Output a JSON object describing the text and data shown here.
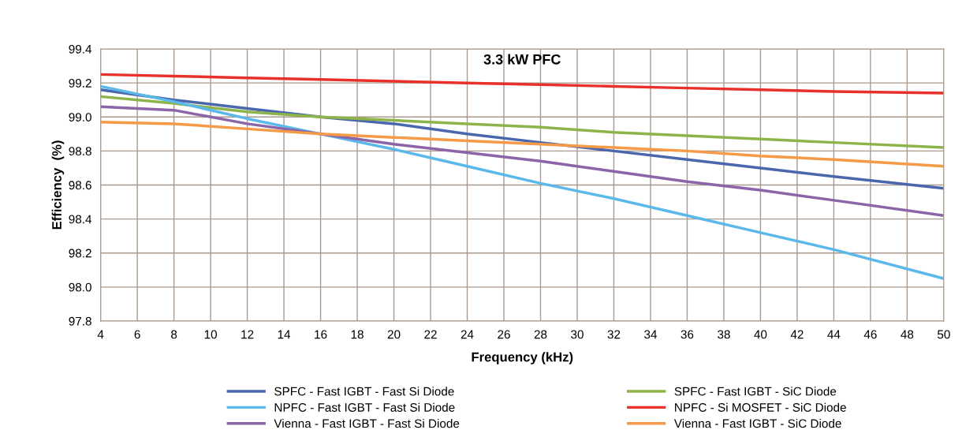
{
  "chart_data": {
    "type": "line",
    "title": "3.3 kW PFC",
    "xlabel": "Frequency (kHz)",
    "ylabel": "Efficiency  (%)",
    "x": [
      4,
      8,
      12,
      16,
      20,
      24,
      28,
      32,
      36,
      40,
      44,
      50
    ],
    "series": [
      {
        "name": "SPFC - Fast IGBT - Fast Si Diode",
        "color": "#4a66ac",
        "values": [
          99.16,
          99.1,
          99.05,
          99.0,
          98.96,
          98.9,
          98.85,
          98.8,
          98.75,
          98.7,
          98.65,
          98.58
        ]
      },
      {
        "name": "SPFC - Fast IGBT - SiC Diode",
        "color": "#8db44b",
        "values": [
          99.12,
          99.08,
          99.03,
          99.0,
          98.98,
          98.96,
          98.94,
          98.91,
          98.89,
          98.87,
          98.85,
          98.82
        ]
      },
      {
        "name": "NPFC - Fast IGBT - Fast Si Diode",
        "color": "#5bb8ea",
        "values": [
          99.18,
          99.09,
          98.99,
          98.9,
          98.81,
          98.71,
          98.61,
          98.52,
          98.42,
          98.32,
          98.22,
          98.05
        ]
      },
      {
        "name": "NPFC - Si MOSFET - SiC Diode",
        "color": "#e8312a",
        "values": [
          99.25,
          99.24,
          99.23,
          99.22,
          99.21,
          99.2,
          99.19,
          99.18,
          99.17,
          99.16,
          99.15,
          99.14
        ]
      },
      {
        "name": "Vienna - Fast IGBT - Fast Si Diode",
        "color": "#8c64a8",
        "values": [
          99.06,
          99.04,
          98.96,
          98.9,
          98.84,
          98.79,
          98.74,
          98.68,
          98.62,
          98.57,
          98.51,
          98.42
        ]
      },
      {
        "name": "Vienna - Fast IGBT - SiC Diode",
        "color": "#f59a46",
        "values": [
          98.97,
          98.96,
          98.93,
          98.9,
          98.88,
          98.86,
          98.84,
          98.82,
          98.8,
          98.77,
          98.75,
          98.71
        ]
      }
    ],
    "xlim": [
      4,
      50
    ],
    "xticks": [
      4,
      6,
      8,
      10,
      12,
      14,
      16,
      18,
      20,
      22,
      24,
      26,
      28,
      30,
      32,
      34,
      36,
      38,
      40,
      42,
      44,
      46,
      48,
      50
    ],
    "ylim": [
      97.8,
      99.4
    ],
    "yticks": [
      {
        "value": 97.8,
        "label": "97.8"
      },
      {
        "value": 98.0,
        "label": "98.0"
      },
      {
        "value": 98.2,
        "label": "98.2"
      },
      {
        "value": 98.4,
        "label": "98.4"
      },
      {
        "value": 98.6,
        "label": "98.6"
      },
      {
        "value": 98.8,
        "label": "98.8"
      },
      {
        "value": 99.0,
        "label": "99.0"
      },
      {
        "value": 99.2,
        "label": "99.2"
      },
      {
        "value": 99.4,
        "label": "99.4"
      }
    ],
    "grid": true,
    "legend": "bottom",
    "marker": "none",
    "line_style": "solid"
  }
}
